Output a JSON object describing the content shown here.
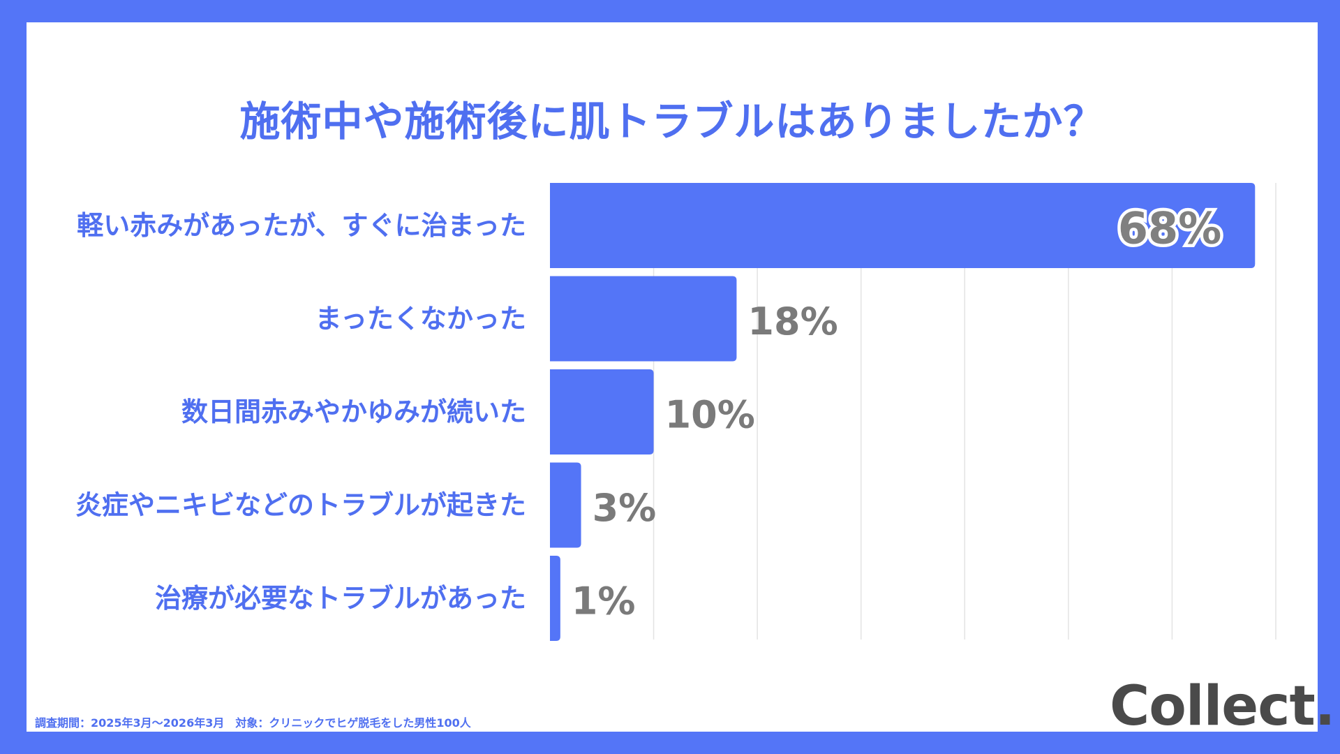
{
  "title": "施術中や施術後に肌トラブルはありましたか？",
  "footnote": "調査期間：2025年3月〜2026年3月　対象：クリニックでヒゲ脱毛をした男性100人",
  "logo": "Collect.",
  "colors": {
    "background": "#5475f7",
    "bar": "#5475f7",
    "label": "#4f6ff0",
    "value": "#7a7a7a",
    "grid": "#e3e3e3"
  },
  "chart_data": {
    "type": "bar",
    "orientation": "horizontal",
    "categories": [
      "軽い赤みがあったが、すぐに治まった",
      "まったくなかった",
      "数日間赤みやかゆみが続いた",
      "炎症やニキビなどのトラブルが起きた",
      "治療が必要なトラブルがあった"
    ],
    "values": [
      68,
      18,
      10,
      3,
      1
    ],
    "value_labels": [
      "68%",
      "18%",
      "10%",
      "3%",
      "1%"
    ],
    "xlim": [
      0,
      70
    ],
    "grid": true
  }
}
